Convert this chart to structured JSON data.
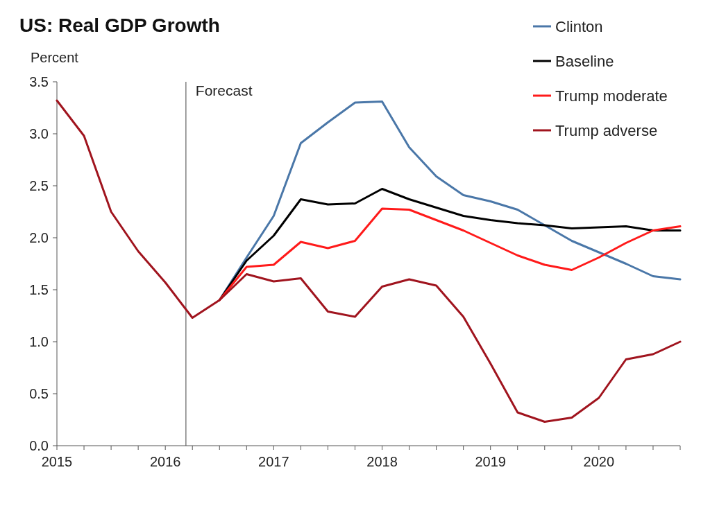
{
  "chart_data": {
    "type": "line",
    "title": "US: Real GDP Growth",
    "ylabel": "Percent",
    "x": [
      2015,
      2015.25,
      2015.5,
      2015.75,
      2016,
      2016.25,
      2016.5,
      2016.75,
      2017,
      2017.25,
      2017.5,
      2017.75,
      2018,
      2018.25,
      2018.5,
      2018.75,
      2019,
      2019.25,
      2019.5,
      2019.75,
      2020,
      2020.25,
      2020.5,
      2020.75
    ],
    "xlim": [
      2015,
      2020.75
    ],
    "xticks": [
      2015,
      {
        "value": 2015.25,
        "label": null
      },
      {
        "value": 2015.5,
        "label": null
      },
      {
        "value": 2015.75,
        "label": null
      },
      2016,
      {
        "value": 2016.25,
        "label": null
      },
      {
        "value": 2016.5,
        "label": null
      },
      {
        "value": 2016.75,
        "label": null
      },
      2017,
      {
        "value": 2017.25,
        "label": null
      },
      {
        "value": 2017.5,
        "label": null
      },
      {
        "value": 2017.75,
        "label": null
      },
      2018,
      {
        "value": 2018.25,
        "label": null
      },
      {
        "value": 2018.5,
        "label": null
      },
      {
        "value": 2018.75,
        "label": null
      },
      2019,
      {
        "value": 2019.25,
        "label": null
      },
      {
        "value": 2019.5,
        "label": null
      },
      {
        "value": 2019.75,
        "label": null
      },
      2020,
      {
        "value": 2020.25,
        "label": null
      },
      {
        "value": 2020.5,
        "label": null
      },
      {
        "value": 2020.75,
        "label": null
      }
    ],
    "ylim": [
      0,
      3.5
    ],
    "yticks": [
      {
        "value": 0,
        "label": "0.0"
      },
      {
        "value": 0.5,
        "label": "0.5"
      },
      {
        "value": 1,
        "label": "1.0"
      },
      {
        "value": 1.5,
        "label": "1.5"
      },
      {
        "value": 2,
        "label": "2.0"
      },
      {
        "value": 2.5,
        "label": "2.5"
      },
      {
        "value": 3,
        "label": "3.0"
      },
      {
        "value": 3.5,
        "label": "3.5"
      }
    ],
    "series": [
      {
        "name": "Clinton",
        "color": "#4a77a8",
        "values": [
          null,
          null,
          null,
          null,
          null,
          null,
          1.4,
          1.81,
          2.21,
          2.91,
          3.11,
          3.3,
          3.31,
          2.87,
          2.59,
          2.41,
          2.35,
          2.27,
          2.12,
          1.97,
          1.86,
          1.75,
          1.63,
          1.6
        ]
      },
      {
        "name": "Baseline",
        "color": "#000000",
        "values": [
          null,
          null,
          null,
          null,
          null,
          null,
          1.4,
          1.78,
          2.02,
          2.37,
          2.32,
          2.33,
          2.47,
          2.37,
          2.29,
          2.21,
          2.17,
          2.14,
          2.12,
          2.09,
          2.1,
          2.11,
          2.07,
          2.07
        ]
      },
      {
        "name": "Trump moderate",
        "color": "#ff1a1a",
        "values": [
          null,
          null,
          null,
          null,
          null,
          null,
          1.4,
          1.72,
          1.74,
          1.96,
          1.9,
          1.97,
          2.28,
          2.27,
          2.17,
          2.07,
          1.95,
          1.83,
          1.74,
          1.69,
          1.81,
          1.95,
          2.07,
          2.11
        ]
      },
      {
        "name": "Trump adverse",
        "color": "#a0141e",
        "values": [
          3.32,
          2.98,
          2.25,
          1.87,
          1.57,
          1.23,
          1.4,
          1.65,
          1.58,
          1.61,
          1.29,
          1.24,
          1.53,
          1.6,
          1.54,
          1.24,
          0.79,
          0.32,
          0.23,
          0.27,
          0.46,
          0.83,
          0.88,
          1.0
        ]
      }
    ],
    "ref_lines": [
      {
        "axis": "x",
        "value": 2016.19,
        "label": "Forecast",
        "color": "#808080"
      }
    ],
    "legend": "top right",
    "grid": false,
    "marker": "none",
    "line_style": "solid"
  }
}
